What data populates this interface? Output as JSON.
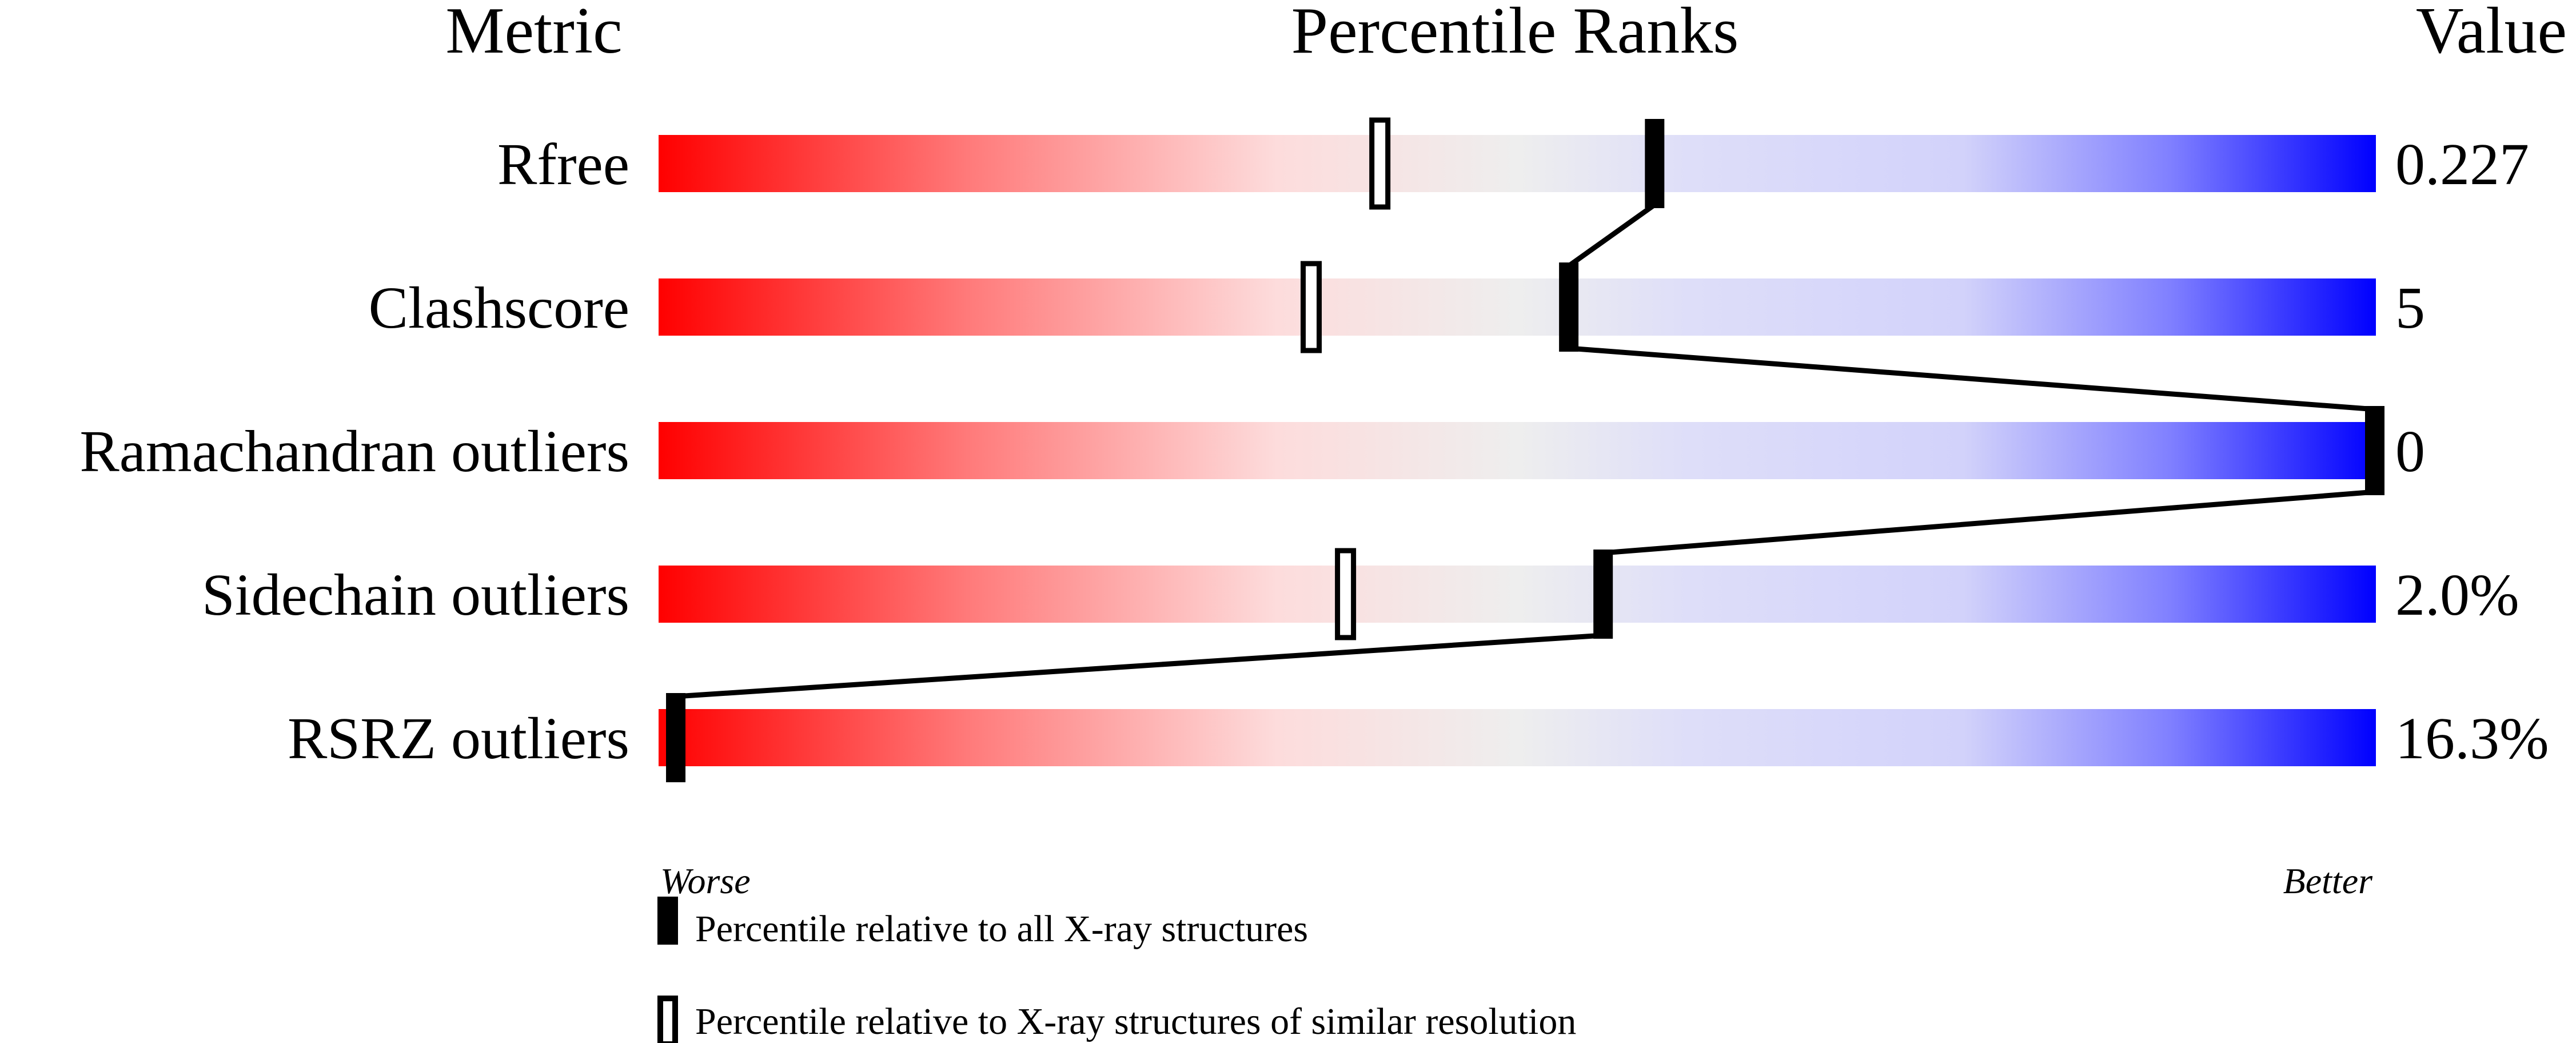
{
  "headers": {
    "metric": "Metric",
    "percentile": "Percentile Ranks",
    "value": "Value"
  },
  "axis": {
    "worse": "Worse",
    "better": "Better"
  },
  "legend": {
    "all": "Percentile relative to all X-ray structures",
    "similar": "Percentile relative to X-ray structures of similar resolution"
  },
  "colors": {
    "worse": "#ff0000",
    "middle": "#eeeeee",
    "better": "#0000ff",
    "marker": "#000000"
  },
  "chart_data": {
    "type": "bar",
    "title": "Percentile Ranks",
    "xlim": [
      0,
      100
    ],
    "grid": false,
    "legend_position": "bottom",
    "categories": [
      "Rfree",
      "Clashscore",
      "Ramachandran outliers",
      "Sidechain outliers",
      "RSRZ outliers"
    ],
    "values": [
      "0.227",
      "5",
      "0",
      "2.0%",
      "16.3%"
    ],
    "series": [
      {
        "name": "Percentile relative to all X-ray structures",
        "values": [
          58,
          53,
          100,
          55,
          1
        ]
      },
      {
        "name": "Percentile relative to X-ray structures of similar resolution",
        "values": [
          42,
          38,
          null,
          40,
          null
        ]
      }
    ]
  }
}
